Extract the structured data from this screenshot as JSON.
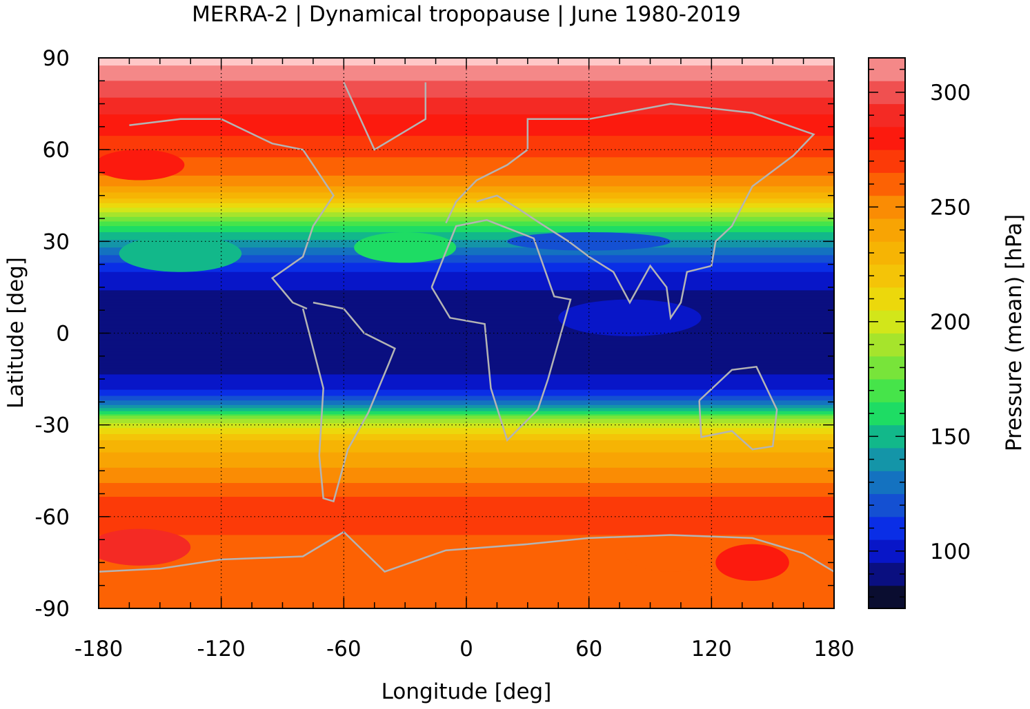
{
  "chart_data": {
    "type": "heatmap",
    "title": "MERRA-2 | Dynamical tropopause | June 1980-2019",
    "xlabel": "Longitude [deg]",
    "ylabel": "Latitude [deg]",
    "colorbar_label": "Pressure (mean) [hPa]",
    "xlim": [
      -180,
      180
    ],
    "ylim": [
      -90,
      90
    ],
    "x_ticks": [
      -180,
      -120,
      -60,
      0,
      60,
      120,
      180
    ],
    "x_tick_labels": [
      "-180",
      "-120",
      "-60",
      "0",
      "60",
      "120",
      "180"
    ],
    "y_ticks": [
      90,
      60,
      30,
      0,
      -30,
      -60,
      -90
    ],
    "y_tick_labels": [
      "90",
      "60",
      "30",
      "0",
      "-30",
      "-60",
      "-90"
    ],
    "grid": true,
    "colorbar": {
      "range": [
        75,
        315
      ],
      "ticks": [
        300,
        250,
        200,
        150,
        100
      ],
      "tick_labels": [
        "300",
        "250",
        "200",
        "150",
        "100"
      ],
      "levels": [
        {
          "from": 75,
          "to": 85,
          "color": "#0a0d30"
        },
        {
          "from": 85,
          "to": 95,
          "color": "#0a0f80"
        },
        {
          "from": 95,
          "to": 105,
          "color": "#0816c8"
        },
        {
          "from": 105,
          "to": 115,
          "color": "#0a2ee6"
        },
        {
          "from": 115,
          "to": 125,
          "color": "#1450d2"
        },
        {
          "from": 125,
          "to": 135,
          "color": "#1472c0"
        },
        {
          "from": 135,
          "to": 145,
          "color": "#1495a8"
        },
        {
          "from": 145,
          "to": 155,
          "color": "#12b88a"
        },
        {
          "from": 155,
          "to": 165,
          "color": "#1edc64"
        },
        {
          "from": 165,
          "to": 175,
          "color": "#46e44a"
        },
        {
          "from": 175,
          "to": 185,
          "color": "#78e43a"
        },
        {
          "from": 185,
          "to": 195,
          "color": "#a6e42c"
        },
        {
          "from": 195,
          "to": 205,
          "color": "#d2e61a"
        },
        {
          "from": 205,
          "to": 215,
          "color": "#ecd80c"
        },
        {
          "from": 215,
          "to": 225,
          "color": "#f4c408"
        },
        {
          "from": 225,
          "to": 235,
          "color": "#f6b404"
        },
        {
          "from": 235,
          "to": 245,
          "color": "#f8a404"
        },
        {
          "from": 245,
          "to": 255,
          "color": "#fa8c04"
        },
        {
          "from": 255,
          "to": 265,
          "color": "#fc6204"
        },
        {
          "from": 265,
          "to": 275,
          "color": "#fc3a08"
        },
        {
          "from": 275,
          "to": 285,
          "color": "#fc1a0e"
        },
        {
          "from": 285,
          "to": 295,
          "color": "#f42a24"
        },
        {
          "from": 295,
          "to": 305,
          "color": "#f05050"
        },
        {
          "from": 305,
          "to": 315,
          "color": "#f48888"
        },
        {
          "from": 315,
          "to": 325,
          "color": "#ffc8c8"
        }
      ]
    },
    "zonal_mean_profile": {
      "lat": [
        90,
        86,
        80,
        75,
        70,
        65,
        60,
        55,
        50,
        47,
        44,
        41,
        38,
        35,
        32,
        28,
        24,
        20,
        15,
        10,
        0,
        -10,
        -16,
        -20,
        -23,
        -26,
        -28,
        -30,
        -32,
        -34,
        -36,
        -40,
        -44,
        -48,
        -52,
        -56,
        -60,
        -65,
        -70,
        -75,
        -80,
        -85,
        -90
      ],
      "pressure": [
        320,
        312,
        300,
        292,
        282,
        276,
        268,
        262,
        252,
        240,
        225,
        205,
        185,
        165,
        150,
        135,
        118,
        105,
        96,
        90,
        88,
        90,
        98,
        110,
        130,
        160,
        185,
        200,
        210,
        220,
        228,
        238,
        245,
        252,
        262,
        270,
        272,
        266,
        260,
        258,
        258,
        256,
        255
      ]
    }
  }
}
